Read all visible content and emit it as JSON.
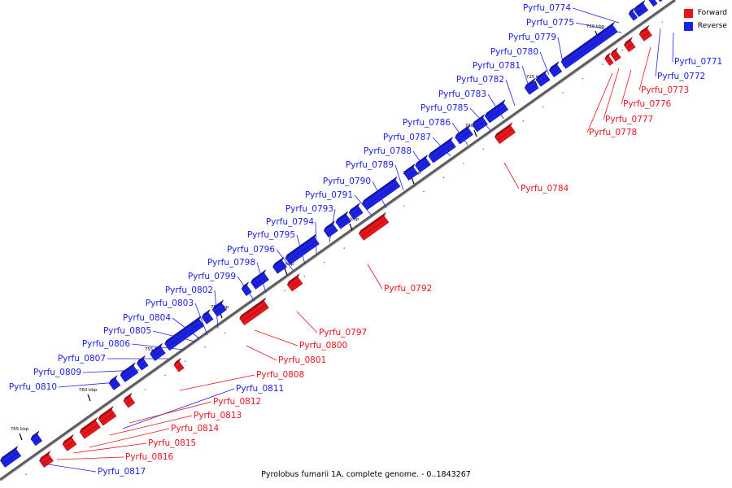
{
  "title": "Pyrolobus fumarii 1A, complete genome. - 0..1843267",
  "legend": {
    "forward_label": "Forward",
    "reverse_label": "Reverse",
    "forward_color": "#e8151b",
    "reverse_color": "#1c22e6"
  },
  "ticks": [
    "720 kbp",
    "725 kbp",
    "730 kbp",
    "735 kbp",
    "740 kbp",
    "745 kbp",
    "750 kbp",
    "755 kbp",
    "760 kbp",
    "765 kbp"
  ],
  "genes_reverse": [
    "Pyrfu_0771",
    "Pyrfu_0772",
    "Pyrfu_0774",
    "Pyrfu_0775",
    "Pyrfu_0779",
    "Pyrfu_0780",
    "Pyrfu_0781",
    "Pyrfu_0782",
    "Pyrfu_0783",
    "Pyrfu_0785",
    "Pyrfu_0786",
    "Pyrfu_0787",
    "Pyrfu_0788",
    "Pyrfu_0789",
    "Pyrfu_0790",
    "Pyrfu_0791",
    "Pyrfu_0793",
    "Pyrfu_0794",
    "Pyrfu_0795",
    "Pyrfu_0796",
    "Pyrfu_0798",
    "Pyrfu_0799",
    "Pyrfu_0802",
    "Pyrfu_0803",
    "Pyrfu_0804",
    "Pyrfu_0805",
    "Pyrfu_0806",
    "Pyrfu_0807",
    "Pyrfu_0809",
    "Pyrfu_0810",
    "Pyrfu_0811",
    "Pyrfu_0817"
  ],
  "genes_forward": [
    "Pyrfu_0773",
    "Pyrfu_0776",
    "Pyrfu_0777",
    "Pyrfu_0778",
    "Pyrfu_0784",
    "Pyrfu_0792",
    "Pyrfu_0797",
    "Pyrfu_0800",
    "Pyrfu_0801",
    "Pyrfu_0808",
    "Pyrfu_0812",
    "Pyrfu_0813",
    "Pyrfu_0814",
    "Pyrfu_0815",
    "Pyrfu_0816"
  ]
}
